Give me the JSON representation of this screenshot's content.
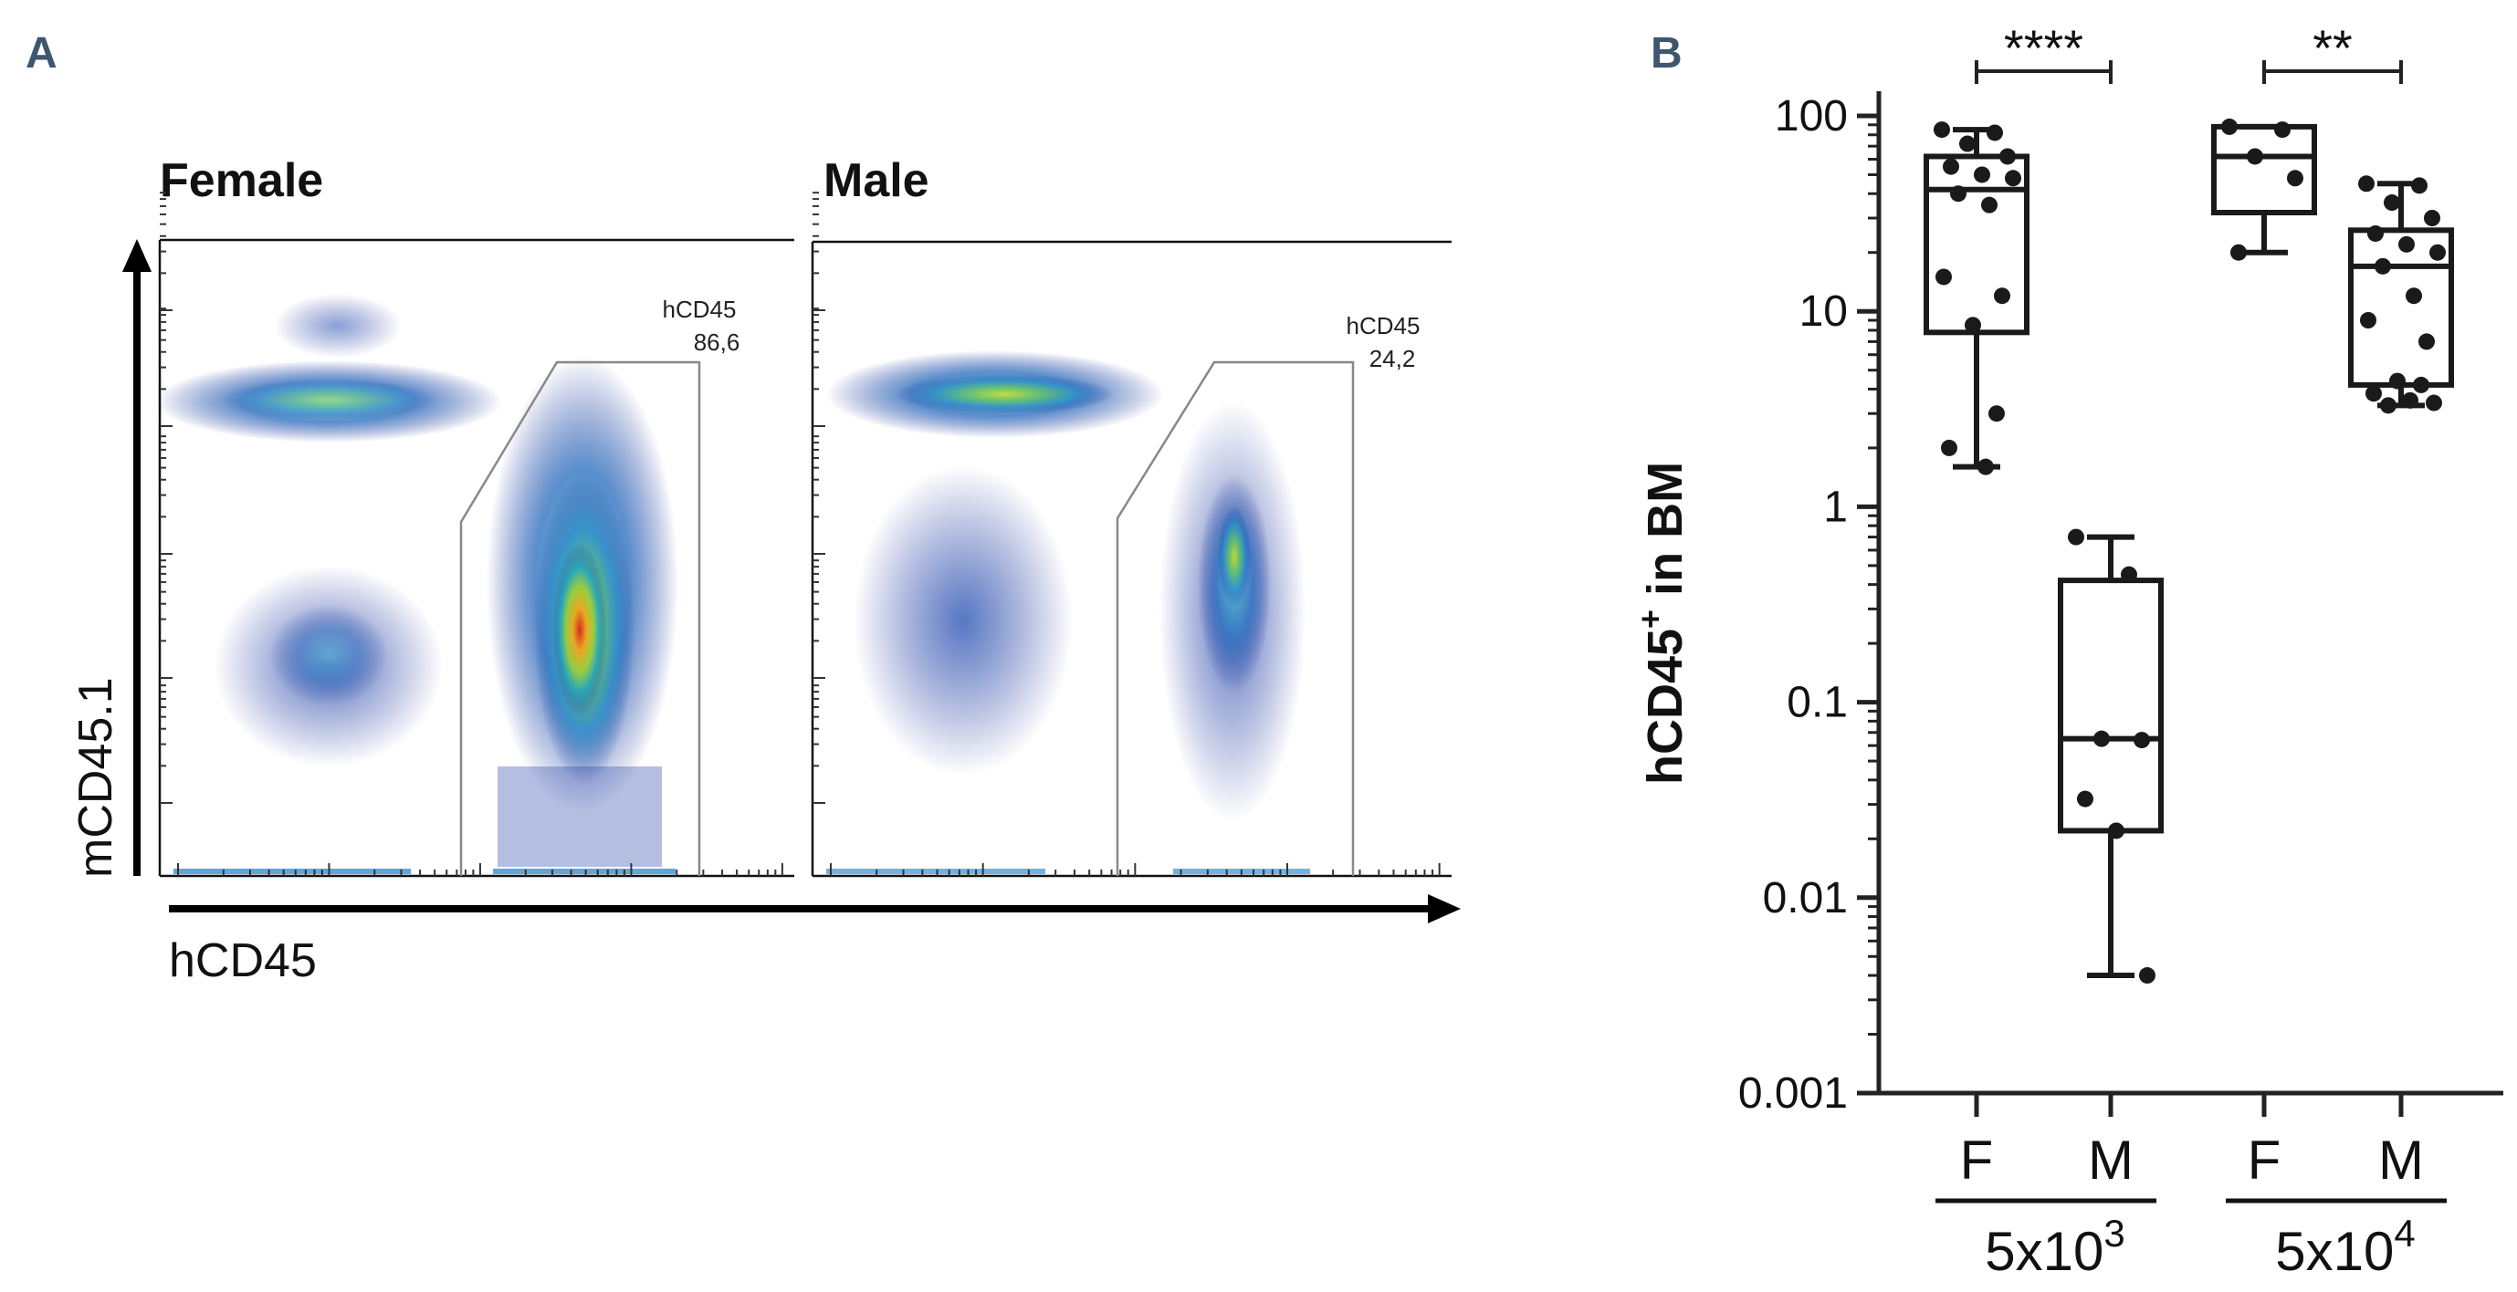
{
  "panel_a": {
    "letter": "A",
    "plots": [
      {
        "title": "Female",
        "gate_name": "hCD45",
        "gate_value": "86,6"
      },
      {
        "title": "Male",
        "gate_name": "hCD45",
        "gate_value": "24,2"
      }
    ],
    "xlabel": "hCD45",
    "ylabel": "mCD45.1"
  },
  "panel_b": {
    "letter": "B"
  },
  "chart_data": {
    "type": "box",
    "ylabel_main": "hCD45",
    "ylabel_sup": "+",
    "ylabel_rest": " in BM",
    "yscale": "log",
    "ylim": [
      0.001,
      100
    ],
    "yticks": [
      {
        "value": 100,
        "label": "100"
      },
      {
        "value": 10,
        "label": "10"
      },
      {
        "value": 1,
        "label": "1"
      },
      {
        "value": 0.1,
        "label": "0.1"
      },
      {
        "value": 0.01,
        "label": "0.01"
      },
      {
        "value": 0.001,
        "label": "0.001"
      }
    ],
    "categories": [
      "F",
      "M",
      "F",
      "M"
    ],
    "groups": [
      {
        "base": "5x10",
        "exp": "3",
        "categories": [
          0,
          1
        ]
      },
      {
        "base": "5x10",
        "exp": "4",
        "categories": [
          2,
          3
        ]
      }
    ],
    "boxes": [
      {
        "label": "F",
        "min": 1.6,
        "q1": 7.8,
        "median": 42,
        "q3": 62,
        "max": 85,
        "points": [
          85,
          82,
          72,
          62,
          55,
          50,
          48,
          40,
          35,
          15,
          12,
          8.5,
          3.0,
          2.0,
          1.6
        ]
      },
      {
        "label": "M",
        "min": 0.004,
        "q1": 0.022,
        "median": 0.065,
        "q3": 0.42,
        "max": 0.7,
        "points": [
          0.7,
          0.45,
          0.065,
          0.064,
          0.032,
          0.022,
          0.004
        ]
      },
      {
        "label": "F",
        "min": 20,
        "q1": 32,
        "median": 62,
        "q3": 88,
        "max": 88,
        "points": [
          88,
          85,
          62,
          48,
          20
        ]
      },
      {
        "label": "M",
        "min": 3.3,
        "q1": 4.2,
        "median": 17,
        "q3": 26,
        "max": 45,
        "points": [
          45,
          44,
          36,
          30,
          25,
          22,
          20,
          17,
          12,
          9,
          7,
          4.4,
          4.2,
          3.8,
          3.5,
          3.4,
          3.3
        ]
      }
    ],
    "significance": [
      {
        "from": 0,
        "to": 1,
        "label": "****"
      },
      {
        "from": 2,
        "to": 3,
        "label": "**"
      }
    ]
  }
}
